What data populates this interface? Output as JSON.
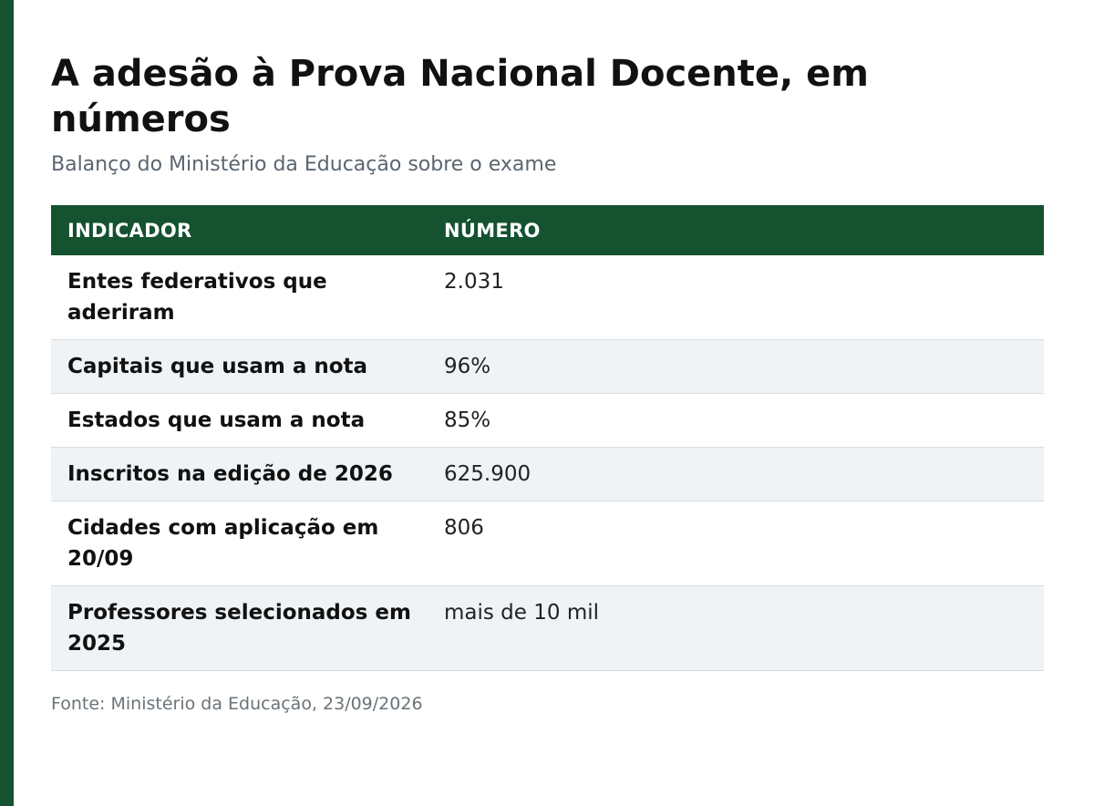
{
  "title": "A adesão à Prova Nacional Docente, em números",
  "subtitle": "Balanço do Ministério da Educação sobre o exame",
  "table": {
    "headers": [
      "INDICADOR",
      "NÚMERO"
    ],
    "rows": [
      {
        "indicator": "Entes federativos que aderiram",
        "value": "2.031"
      },
      {
        "indicator": "Capitais que usam a nota",
        "value": "96%"
      },
      {
        "indicator": "Estados que usam a nota",
        "value": "85%"
      },
      {
        "indicator": "Inscritos na edição de 2026",
        "value": "625.900"
      },
      {
        "indicator": "Cidades com aplicação em 20/09",
        "value": "806"
      },
      {
        "indicator": "Professores selecionados em 2025",
        "value": "mais de 10 mil"
      }
    ]
  },
  "source": "Fonte: Ministério da Educação, 23/09/2026",
  "colors": {
    "accent": "#155230",
    "row_alt": "#eff3f6"
  }
}
